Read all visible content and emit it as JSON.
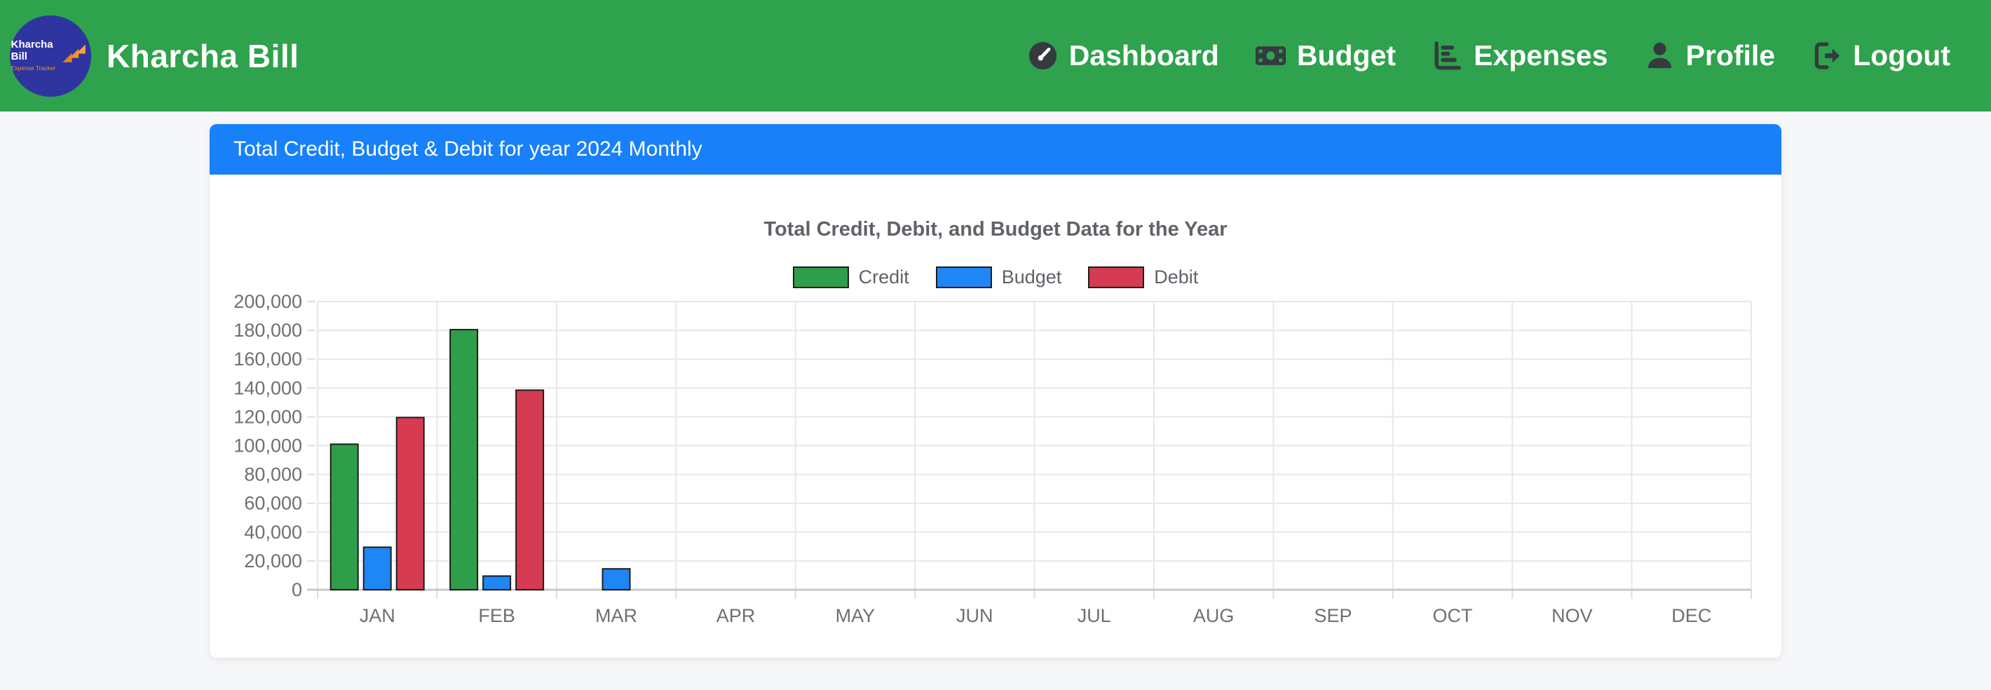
{
  "navbar": {
    "brand": {
      "title": "Kharcha Bill",
      "logo_line1": "Kharcha",
      "logo_line2": "Bill",
      "logo_subtitle": "Expense Tracker"
    },
    "items": [
      {
        "label": "Dashboard",
        "icon": "gauge-icon"
      },
      {
        "label": "Budget",
        "icon": "money-bill-icon"
      },
      {
        "label": "Expenses",
        "icon": "bar-chart-icon"
      },
      {
        "label": "Profile",
        "icon": "user-icon"
      },
      {
        "label": "Logout",
        "icon": "logout-icon"
      }
    ]
  },
  "card": {
    "header": "Total Credit, Budget & Debit for year 2024 Monthly"
  },
  "chart_data": {
    "type": "bar",
    "title": "Total Credit, Debit, and Budget Data for the Year",
    "categories": [
      "JAN",
      "FEB",
      "MAR",
      "APR",
      "MAY",
      "JUN",
      "JUL",
      "AUG",
      "SEP",
      "OCT",
      "NOV",
      "DEC"
    ],
    "series": [
      {
        "name": "Credit",
        "color": "#2f9e4a",
        "values": [
          101000,
          180500,
          0,
          0,
          0,
          0,
          0,
          0,
          0,
          0,
          0,
          0
        ]
      },
      {
        "name": "Budget",
        "color": "#1e86f5",
        "values": [
          29500,
          9500,
          14500,
          0,
          0,
          0,
          0,
          0,
          0,
          0,
          0,
          0
        ]
      },
      {
        "name": "Debit",
        "color": "#d63b51",
        "values": [
          119500,
          138500,
          0,
          0,
          0,
          0,
          0,
          0,
          0,
          0,
          0,
          0
        ]
      }
    ],
    "ylim": [
      0,
      200000
    ],
    "ytick_step": 20000,
    "grid": true,
    "legend_position": "top",
    "bar_border_color": "#1d1d1d"
  },
  "colors": {
    "navbar_background": "#2ea24c",
    "header_background": "#1880f8",
    "page_background": "#f6f7f9",
    "nav_icon": "#343a40",
    "logo_circle": "#2f35a0",
    "logo_accent": "#f6921e"
  }
}
